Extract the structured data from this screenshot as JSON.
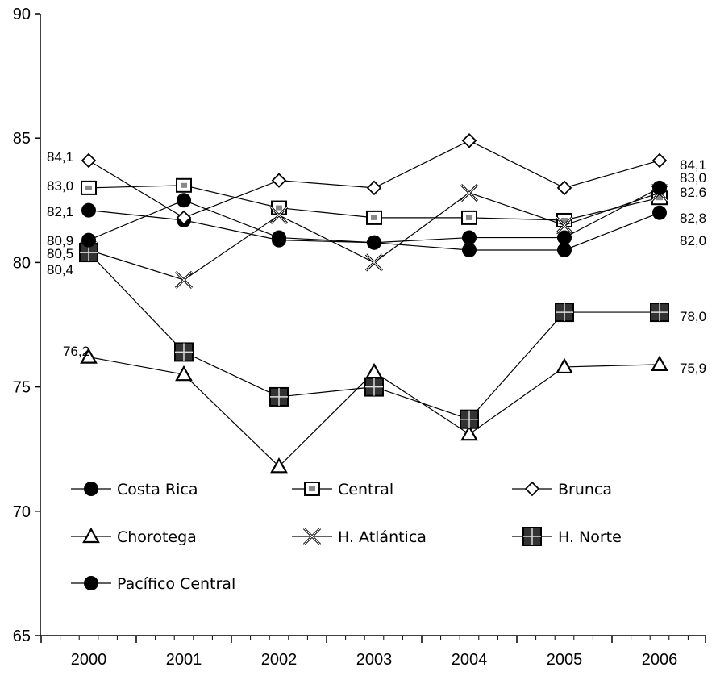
{
  "chart_data": {
    "type": "line",
    "categories": [
      "2000",
      "2001",
      "2002",
      "2003",
      "2004",
      "2005",
      "2006"
    ],
    "ylim": [
      65,
      90
    ],
    "yticks": [
      "65",
      "70",
      "75",
      "80",
      "85",
      "90"
    ],
    "grid": false,
    "legend_position": "bottom-left inside plot",
    "series": [
      {
        "name": "Costa Rica",
        "marker": "circle",
        "values": [
          82.1,
          81.7,
          80.9,
          80.8,
          80.5,
          80.5,
          82.0
        ]
      },
      {
        "name": "Central",
        "marker": "square",
        "values": [
          83.0,
          83.1,
          82.2,
          81.8,
          81.8,
          81.7,
          82.6
        ]
      },
      {
        "name": "Brunca",
        "marker": "diamond",
        "values": [
          84.1,
          81.8,
          83.3,
          83.0,
          84.9,
          83.0,
          84.1
        ]
      },
      {
        "name": "Chorotega",
        "marker": "triangle",
        "values": [
          76.2,
          75.5,
          71.8,
          75.6,
          73.1,
          75.8,
          75.9
        ]
      },
      {
        "name": "H. Atlántica",
        "marker": "x",
        "values": [
          80.5,
          79.3,
          81.9,
          80.0,
          82.8,
          81.5,
          82.8
        ]
      },
      {
        "name": "H. Norte",
        "marker": "bigsquare",
        "values": [
          80.4,
          76.4,
          74.6,
          75.0,
          73.7,
          78.0,
          78.0
        ]
      },
      {
        "name": "Pacífico Central",
        "marker": "circle",
        "values": [
          80.9,
          82.5,
          81.0,
          80.8,
          81.0,
          81.0,
          83.0
        ]
      }
    ],
    "data_labels": {
      "left": [
        "84,1",
        "83,0",
        "82,1",
        "80,9",
        "80,5",
        "80,4",
        "76,2"
      ],
      "right": [
        "84,1",
        "83,0",
        "82,6",
        "82,8",
        "82,0",
        "78,0",
        "75,9"
      ]
    }
  }
}
